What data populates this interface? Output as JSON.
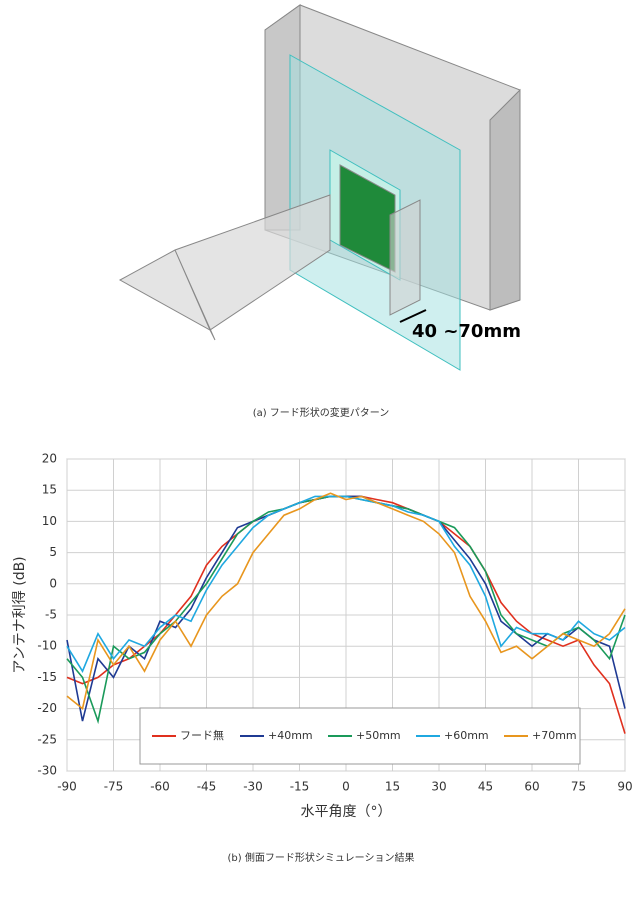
{
  "figure": {
    "dimension_label": "40 ~70mm",
    "caption_a": "(a) フード形状の変更パターン",
    "caption_b": "(b) 側面フード形状シミュレーション結果"
  },
  "chart_data": {
    "type": "line",
    "xlabel": "水平角度（°）",
    "ylabel": "アンテナ利得 (dB)",
    "x": [
      -90,
      -85,
      -80,
      -75,
      -70,
      -65,
      -60,
      -55,
      -50,
      -45,
      -40,
      -35,
      -30,
      -25,
      -20,
      -15,
      -10,
      -5,
      0,
      5,
      10,
      15,
      20,
      25,
      30,
      35,
      40,
      45,
      50,
      55,
      60,
      65,
      70,
      75,
      80,
      85,
      90
    ],
    "series": [
      {
        "name": "フード無",
        "color": "#e0301e",
        "values": [
          -15,
          -16,
          -15,
          -13,
          -12,
          -10,
          -8,
          -5,
          -2,
          3,
          6,
          8,
          10,
          11,
          12,
          13,
          13.5,
          14,
          14,
          14,
          13.5,
          13,
          12,
          11,
          10,
          8,
          6,
          2,
          -3,
          -6,
          -8,
          -9,
          -10,
          -9,
          -13,
          -16,
          -24
        ]
      },
      {
        "name": "+40mm",
        "color": "#1f3a93",
        "values": [
          -9,
          -22,
          -12,
          -15,
          -10,
          -12,
          -6,
          -7,
          -4,
          1,
          5,
          9,
          10,
          11,
          12,
          13,
          13.5,
          14,
          14,
          14,
          13,
          12.5,
          12,
          11,
          10,
          7,
          4,
          0,
          -6,
          -8,
          -10,
          -8,
          -9,
          -7,
          -9,
          -10,
          -20
        ]
      },
      {
        "name": "+50mm",
        "color": "#1a9a5a",
        "values": [
          -12,
          -15,
          -22,
          -10,
          -12,
          -11,
          -8,
          -6,
          -3,
          0,
          4,
          8,
          10,
          11.5,
          12,
          13,
          13.5,
          14,
          14,
          13.5,
          13,
          12.5,
          12,
          11,
          10,
          9,
          6,
          2,
          -5,
          -8,
          -9,
          -10,
          -8,
          -7,
          -9,
          -12,
          -5
        ]
      },
      {
        "name": "+60mm",
        "color": "#1fa8e0",
        "values": [
          -10,
          -14,
          -8,
          -12,
          -9,
          -10,
          -7,
          -5,
          -6,
          -1,
          3,
          6,
          9,
          11,
          12,
          13,
          14,
          14,
          14,
          13.5,
          13,
          12.5,
          11.5,
          11,
          10,
          6,
          3,
          -2,
          -10,
          -7,
          -8,
          -8,
          -9,
          -6,
          -8,
          -9,
          -7
        ]
      },
      {
        "name": "+70mm",
        "color": "#e8961e",
        "values": [
          -18,
          -20,
          -9,
          -13,
          -10,
          -14,
          -9,
          -6,
          -10,
          -5,
          -2,
          0,
          5,
          8,
          11,
          12,
          13.5,
          14.5,
          13.5,
          14,
          13,
          12,
          11,
          10,
          8,
          5,
          -2,
          -6,
          -11,
          -10,
          -12,
          -10,
          -8,
          -9,
          -10,
          -8,
          -4
        ]
      }
    ],
    "xlim": [
      -90,
      90
    ],
    "xticks": [
      -90,
      -75,
      -60,
      -45,
      -30,
      -15,
      0,
      15,
      30,
      45,
      60,
      75,
      90
    ],
    "ylim": [
      -30,
      20
    ],
    "yticks": [
      -30,
      -25,
      -20,
      -15,
      -10,
      -5,
      0,
      5,
      10,
      15,
      20
    ],
    "grid": true,
    "legend": "lower center"
  }
}
